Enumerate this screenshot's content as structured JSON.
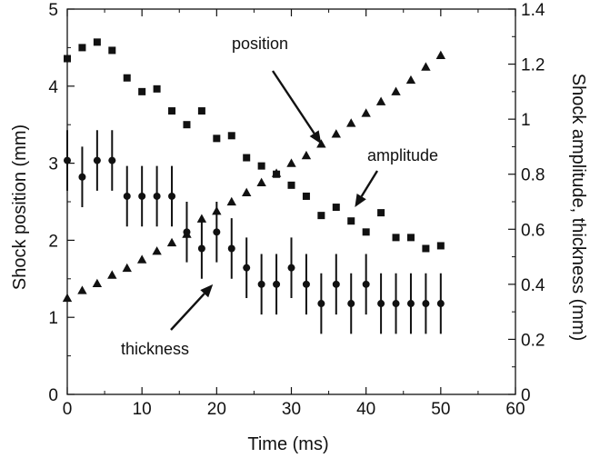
{
  "chart_data": {
    "type": "scatter",
    "xlabel": "Time (ms)",
    "ylabel_left": "Shock position (mm)",
    "ylabel_right": "Shock amplitude, thickness (mm)",
    "xlim": [
      0,
      60
    ],
    "ylim_left": [
      0,
      5
    ],
    "ylim_right": [
      0,
      1.4
    ],
    "x_ticks": [
      "0",
      "10",
      "20",
      "30",
      "40",
      "50",
      "60"
    ],
    "y_left_ticks": [
      "0",
      "1",
      "2",
      "3",
      "4",
      "5"
    ],
    "y_right_ticks": [
      "0",
      "0.2",
      "0.4",
      "0.6",
      "0.8",
      "1",
      "1.2",
      "1.4"
    ],
    "grid": false,
    "series": [
      {
        "marker": "triangle",
        "axis": "left",
        "points": [
          [
            0,
            1.25
          ],
          [
            2,
            1.35
          ],
          [
            4,
            1.44
          ],
          [
            6,
            1.55
          ],
          [
            8,
            1.64
          ],
          [
            10,
            1.75
          ],
          [
            12,
            1.86
          ],
          [
            14,
            1.97
          ],
          [
            16,
            2.08
          ],
          [
            18,
            2.28
          ],
          [
            20,
            2.38
          ],
          [
            22,
            2.5
          ],
          [
            24,
            2.62
          ],
          [
            26,
            2.75
          ],
          [
            28,
            2.87
          ],
          [
            30,
            3.0
          ],
          [
            32,
            3.1
          ],
          [
            34,
            3.25
          ],
          [
            36,
            3.38
          ],
          [
            38,
            3.52
          ],
          [
            40,
            3.65
          ],
          [
            42,
            3.8
          ],
          [
            44,
            3.93
          ],
          [
            46,
            4.08
          ],
          [
            48,
            4.25
          ],
          [
            50,
            4.4
          ]
        ]
      },
      {
        "marker": "square",
        "axis": "right",
        "points": [
          [
            0,
            1.22
          ],
          [
            2,
            1.26
          ],
          [
            4,
            1.28
          ],
          [
            6,
            1.25
          ],
          [
            8,
            1.15
          ],
          [
            10,
            1.1
          ],
          [
            12,
            1.11
          ],
          [
            14,
            1.03
          ],
          [
            16,
            0.98
          ],
          [
            18,
            1.03
          ],
          [
            20,
            0.93
          ],
          [
            22,
            0.94
          ],
          [
            24,
            0.86
          ],
          [
            26,
            0.83
          ],
          [
            28,
            0.8
          ],
          [
            30,
            0.76
          ],
          [
            32,
            0.72
          ],
          [
            34,
            0.65
          ],
          [
            36,
            0.68
          ],
          [
            38,
            0.63
          ],
          [
            40,
            0.59
          ],
          [
            42,
            0.66
          ],
          [
            44,
            0.57
          ],
          [
            46,
            0.57
          ],
          [
            48,
            0.53
          ],
          [
            50,
            0.54
          ]
        ]
      },
      {
        "marker": "circle",
        "axis": "right",
        "error_bars": true,
        "points": [
          [
            0,
            0.85,
            0.11
          ],
          [
            2,
            0.79,
            0.11
          ],
          [
            4,
            0.85,
            0.11
          ],
          [
            6,
            0.85,
            0.11
          ],
          [
            8,
            0.72,
            0.11
          ],
          [
            10,
            0.72,
            0.11
          ],
          [
            12,
            0.72,
            0.11
          ],
          [
            14,
            0.72,
            0.11
          ],
          [
            16,
            0.59,
            0.11
          ],
          [
            18,
            0.53,
            0.11
          ],
          [
            20,
            0.59,
            0.11
          ],
          [
            22,
            0.53,
            0.11
          ],
          [
            24,
            0.46,
            0.11
          ],
          [
            26,
            0.4,
            0.11
          ],
          [
            28,
            0.4,
            0.11
          ],
          [
            30,
            0.46,
            0.11
          ],
          [
            32,
            0.4,
            0.11
          ],
          [
            34,
            0.33,
            0.11
          ],
          [
            36,
            0.4,
            0.11
          ],
          [
            38,
            0.33,
            0.11
          ],
          [
            40,
            0.4,
            0.11
          ],
          [
            42,
            0.33,
            0.11
          ],
          [
            44,
            0.33,
            0.11
          ],
          [
            46,
            0.33,
            0.11
          ],
          [
            48,
            0.33,
            0.11
          ],
          [
            50,
            0.33,
            0.11
          ]
        ]
      }
    ],
    "annotations": [
      {
        "text": "position",
        "arrow_to": [
          34,
          3.25
        ],
        "axis": "left"
      },
      {
        "text": "amplitude",
        "arrow_to": [
          38.5,
          0.68
        ],
        "axis": "right"
      },
      {
        "text": "thickness",
        "arrow_to": [
          19.5,
          0.4
        ],
        "axis": "right"
      }
    ],
    "colors": {
      "marker": "#111111",
      "axis": "#111111"
    }
  }
}
